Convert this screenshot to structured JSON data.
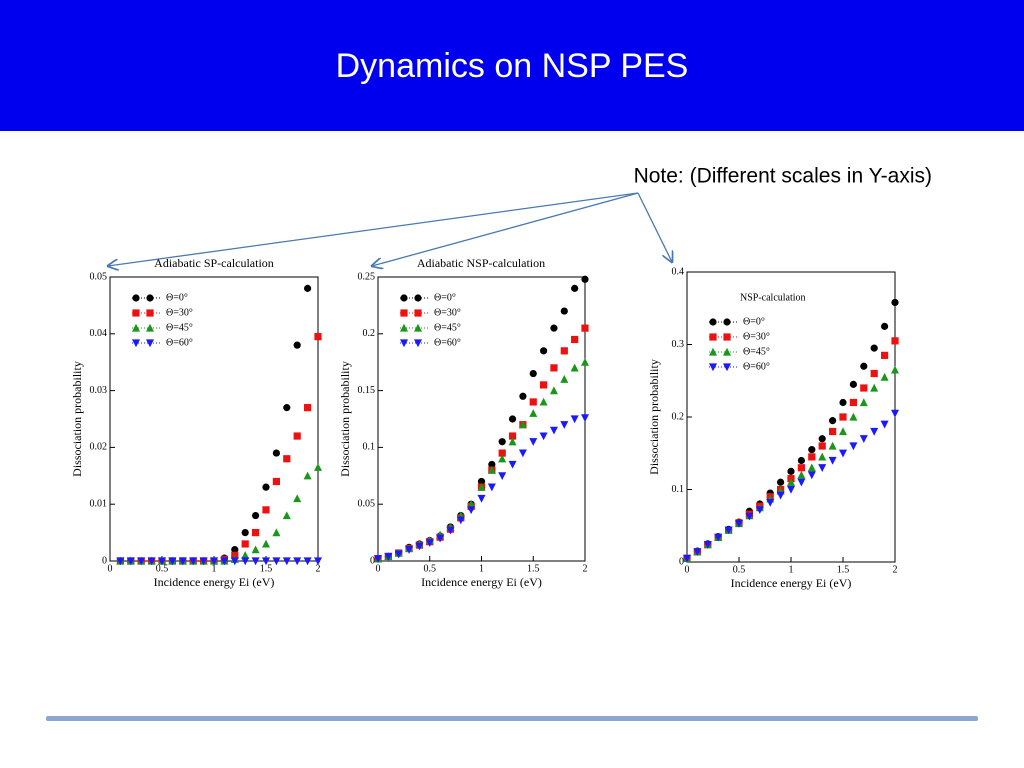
{
  "header": {
    "title": "Dynamics on NSP PES"
  },
  "note": "Note: (Different scales in Y-axis)",
  "chart_data": [
    {
      "type": "scatter",
      "title": "Adiabatic SP-calculation",
      "xlabel": "Incidence energy Ei (eV)",
      "ylabel": "Dissociation probability",
      "x": [
        0.1,
        0.2,
        0.3,
        0.4,
        0.5,
        0.6,
        0.7,
        0.8,
        0.9,
        1.0,
        1.1,
        1.2,
        1.3,
        1.4,
        1.5,
        1.6,
        1.7,
        1.8,
        1.9,
        2.0
      ],
      "xlim": [
        0,
        2
      ],
      "xticks": [
        0,
        0.5,
        1,
        1.5,
        2
      ],
      "ylim": [
        0,
        0.05
      ],
      "yticks": [
        0,
        0.01,
        0.02,
        0.03,
        0.04,
        0.05
      ],
      "series": [
        {
          "name": "Θ=0°",
          "color": "#000000",
          "marker": "circle",
          "values": [
            0,
            0,
            0,
            0,
            0,
            0,
            0,
            0,
            0,
            0,
            0.0005,
            0.002,
            0.005,
            0.008,
            0.013,
            0.019,
            0.027,
            0.038,
            0.048,
            null
          ]
        },
        {
          "name": "Θ=30°",
          "color": "#ee1111",
          "marker": "square",
          "values": [
            0,
            0,
            0,
            0,
            0,
            0,
            0,
            0,
            0,
            0,
            0.0003,
            0.001,
            0.003,
            0.005,
            0.009,
            0.014,
            0.018,
            0.022,
            0.027,
            0.0395
          ]
        },
        {
          "name": "Θ=45°",
          "color": "#1a961a",
          "marker": "triangle-up",
          "values": [
            0,
            0,
            0,
            0,
            0,
            0,
            0,
            0,
            0,
            0,
            0,
            0.0003,
            0.001,
            0.002,
            0.003,
            0.005,
            0.008,
            0.011,
            0.015,
            0.0165
          ]
        },
        {
          "name": "Θ=60°",
          "color": "#1a1aff",
          "marker": "triangle-down",
          "values": [
            0,
            0,
            0,
            0,
            0,
            0,
            0,
            0,
            0,
            0,
            0,
            0,
            0,
            0,
            0,
            0,
            0,
            0,
            0,
            0
          ]
        }
      ]
    },
    {
      "type": "scatter",
      "title": "Adiabatic NSP-calculation",
      "xlabel": "Incidence energy Ei (eV)",
      "ylabel": "Dissociation probability",
      "x": [
        0,
        0.1,
        0.2,
        0.3,
        0.4,
        0.5,
        0.6,
        0.7,
        0.8,
        0.9,
        1.0,
        1.1,
        1.2,
        1.3,
        1.4,
        1.5,
        1.6,
        1.7,
        1.8,
        1.9,
        2.0
      ],
      "xlim": [
        0,
        2
      ],
      "xticks": [
        0,
        0.5,
        1,
        1.5,
        2
      ],
      "ylim": [
        0,
        0.25
      ],
      "yticks": [
        0,
        0.05,
        0.1,
        0.15,
        0.2,
        0.25
      ],
      "series": [
        {
          "name": "Θ=0°",
          "color": "#000000",
          "marker": "circle",
          "values": [
            0.002,
            0.004,
            0.007,
            0.012,
            0.015,
            0.018,
            0.022,
            0.03,
            0.04,
            0.05,
            0.07,
            0.085,
            0.105,
            0.125,
            0.145,
            0.165,
            0.185,
            0.205,
            0.22,
            0.24,
            0.248
          ]
        },
        {
          "name": "Θ=30°",
          "color": "#ee1111",
          "marker": "square",
          "values": [
            0.002,
            0.004,
            0.007,
            0.011,
            0.014,
            0.017,
            0.021,
            0.028,
            0.038,
            0.048,
            0.065,
            0.08,
            0.095,
            0.11,
            0.12,
            0.14,
            0.155,
            0.17,
            0.185,
            0.195,
            0.205
          ]
        },
        {
          "name": "Θ=45°",
          "color": "#1a961a",
          "marker": "triangle-up",
          "values": [
            0.002,
            0.004,
            0.007,
            0.011,
            0.015,
            0.018,
            0.023,
            0.03,
            0.04,
            0.05,
            0.065,
            0.08,
            0.09,
            0.105,
            0.12,
            0.13,
            0.14,
            0.15,
            0.16,
            0.17,
            0.175
          ]
        },
        {
          "name": "Θ=60°",
          "color": "#1a1aff",
          "marker": "triangle-down",
          "values": [
            0.002,
            0.004,
            0.006,
            0.01,
            0.013,
            0.016,
            0.02,
            0.027,
            0.036,
            0.045,
            0.055,
            0.065,
            0.075,
            0.085,
            0.095,
            0.105,
            0.11,
            0.115,
            0.12,
            0.125,
            0.126
          ]
        }
      ]
    },
    {
      "type": "scatter",
      "title": "NSP-calculation",
      "xlabel": "Incidence energy Ei (eV)",
      "ylabel": "Dissociation probability",
      "x": [
        0,
        0.1,
        0.2,
        0.3,
        0.4,
        0.5,
        0.6,
        0.7,
        0.8,
        0.9,
        1.0,
        1.1,
        1.2,
        1.3,
        1.4,
        1.5,
        1.6,
        1.7,
        1.8,
        1.9,
        2.0
      ],
      "xlim": [
        0,
        2
      ],
      "xticks": [
        0,
        0.5,
        1,
        1.5,
        2
      ],
      "ylim": [
        0,
        0.4
      ],
      "yticks": [
        0,
        0.1,
        0.2,
        0.3,
        0.4
      ],
      "series": [
        {
          "name": "Θ=0°",
          "color": "#000000",
          "marker": "circle",
          "values": [
            0.005,
            0.015,
            0.025,
            0.035,
            0.045,
            0.055,
            0.07,
            0.08,
            0.095,
            0.11,
            0.125,
            0.14,
            0.155,
            0.17,
            0.195,
            0.22,
            0.245,
            0.27,
            0.295,
            0.325,
            0.358
          ]
        },
        {
          "name": "Θ=30°",
          "color": "#ee1111",
          "marker": "square",
          "values": [
            0.005,
            0.014,
            0.024,
            0.034,
            0.044,
            0.054,
            0.066,
            0.077,
            0.09,
            0.1,
            0.115,
            0.13,
            0.145,
            0.16,
            0.18,
            0.2,
            0.22,
            0.24,
            0.26,
            0.285,
            0.305
          ]
        },
        {
          "name": "Θ=45°",
          "color": "#1a961a",
          "marker": "triangle-up",
          "values": [
            0.005,
            0.014,
            0.024,
            0.034,
            0.044,
            0.053,
            0.064,
            0.075,
            0.087,
            0.098,
            0.11,
            0.12,
            0.13,
            0.145,
            0.16,
            0.18,
            0.2,
            0.22,
            0.24,
            0.255,
            0.265
          ]
        },
        {
          "name": "Θ=60°",
          "color": "#1a1aff",
          "marker": "triangle-down",
          "values": [
            0.005,
            0.014,
            0.024,
            0.034,
            0.044,
            0.053,
            0.063,
            0.072,
            0.082,
            0.092,
            0.1,
            0.11,
            0.12,
            0.13,
            0.14,
            0.15,
            0.16,
            0.17,
            0.18,
            0.19,
            0.205
          ]
        }
      ]
    }
  ]
}
